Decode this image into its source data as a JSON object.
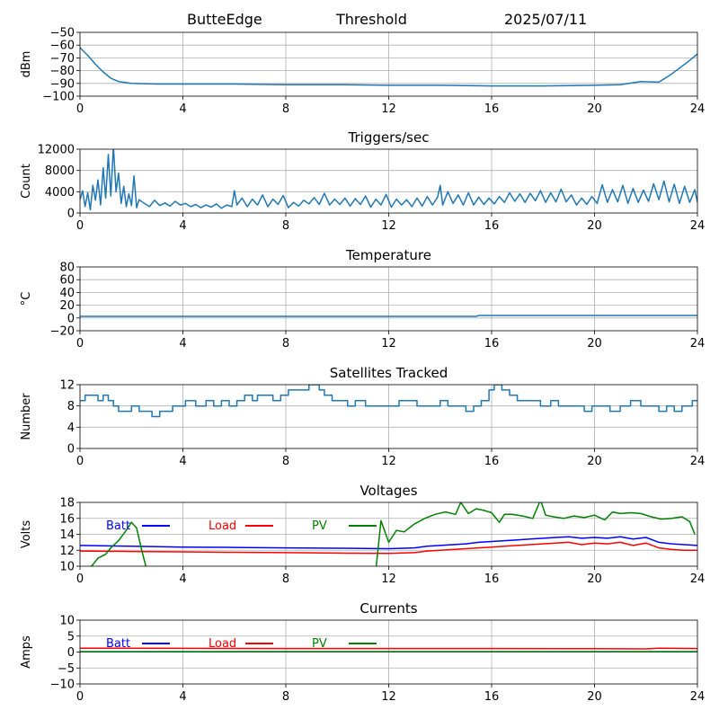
{
  "header": {
    "station": "ButteEdge",
    "mode": "Threshold",
    "date": "2025/07/11"
  },
  "chart_data": [
    {
      "type": "line",
      "title": "",
      "ylabel": "dBm",
      "xlim": [
        0,
        24
      ],
      "ylim": [
        -100,
        -50
      ],
      "xticks": [
        0,
        4,
        8,
        12,
        16,
        20,
        24
      ],
      "yticks": [
        -100,
        -90,
        -80,
        -70,
        -60,
        -50
      ],
      "grid": true,
      "series": [
        {
          "color": "#1f77b4",
          "x": [
            0,
            0.3,
            0.6,
            0.9,
            1.2,
            1.5,
            2,
            3,
            4,
            6,
            8,
            10,
            12,
            14,
            16,
            18,
            20,
            21,
            21.8,
            22.5,
            22.9,
            23.3,
            23.7,
            24
          ],
          "y": [
            -62,
            -68,
            -75,
            -81,
            -86,
            -88.5,
            -90,
            -90.5,
            -90.5,
            -90.5,
            -91,
            -91,
            -91.5,
            -91.5,
            -92,
            -92,
            -91.5,
            -91,
            -88.5,
            -89,
            -84,
            -78,
            -72,
            -67
          ]
        }
      ]
    },
    {
      "type": "line",
      "title": "Triggers/sec",
      "ylabel": "Count",
      "xlim": [
        0,
        24
      ],
      "ylim": [
        0,
        12000
      ],
      "xticks": [
        0,
        4,
        8,
        12,
        16,
        20,
        24
      ],
      "yticks": [
        0,
        4000,
        8000,
        12000
      ],
      "grid": true,
      "series": [
        {
          "color": "#1f77b4",
          "x": [
            0,
            0.1,
            0.2,
            0.3,
            0.4,
            0.5,
            0.6,
            0.7,
            0.8,
            0.9,
            1.0,
            1.1,
            1.2,
            1.3,
            1.4,
            1.5,
            1.6,
            1.7,
            1.8,
            1.9,
            2.0,
            2.1,
            2.2,
            2.3,
            2.5,
            2.7,
            2.9,
            3.1,
            3.3,
            3.5,
            3.7,
            3.9,
            4.1,
            4.3,
            4.5,
            4.7,
            4.9,
            5.1,
            5.3,
            5.5,
            5.7,
            5.9,
            6.0,
            6.1,
            6.3,
            6.5,
            6.7,
            6.9,
            7.1,
            7.3,
            7.5,
            7.7,
            7.9,
            8.1,
            8.3,
            8.5,
            8.7,
            8.9,
            9.1,
            9.3,
            9.5,
            9.7,
            9.9,
            10.1,
            10.3,
            10.5,
            10.7,
            10.9,
            11.1,
            11.3,
            11.5,
            11.7,
            11.9,
            12.1,
            12.3,
            12.5,
            12.7,
            12.9,
            13.1,
            13.3,
            13.5,
            13.7,
            13.9,
            14.0,
            14.1,
            14.3,
            14.5,
            14.7,
            14.9,
            15.1,
            15.3,
            15.5,
            15.7,
            15.9,
            16.1,
            16.3,
            16.5,
            16.7,
            16.9,
            17.1,
            17.3,
            17.5,
            17.7,
            17.9,
            18.1,
            18.3,
            18.5,
            18.7,
            18.9,
            19.1,
            19.3,
            19.5,
            19.7,
            19.9,
            20.1,
            20.3,
            20.5,
            20.7,
            20.9,
            21.1,
            21.3,
            21.5,
            21.7,
            21.9,
            22.1,
            22.3,
            22.5,
            22.7,
            22.9,
            23.1,
            23.3,
            23.5,
            23.7,
            23.9,
            24
          ],
          "y": [
            2500,
            4200,
            1200,
            3800,
            600,
            5200,
            2400,
            6200,
            1500,
            8500,
            2800,
            11000,
            3200,
            12500,
            4000,
            7500,
            1800,
            5000,
            1200,
            3600,
            1400,
            7000,
            1000,
            2500,
            1800,
            1200,
            2400,
            1400,
            1900,
            1300,
            2200,
            1500,
            1800,
            1200,
            1600,
            1000,
            1500,
            1100,
            1700,
            900,
            1500,
            1200,
            4200,
            1500,
            2800,
            1200,
            2600,
            1500,
            3400,
            1200,
            2600,
            1600,
            3300,
            1000,
            2000,
            1300,
            2400,
            1700,
            2900,
            1600,
            3700,
            1500,
            2600,
            1600,
            2800,
            1300,
            2700,
            1600,
            3200,
            1100,
            2600,
            1500,
            3500,
            1100,
            2600,
            1500,
            2500,
            1200,
            2800,
            1300,
            3100,
            1500,
            3000,
            5200,
            1500,
            4000,
            1800,
            3400,
            1500,
            3800,
            1500,
            3000,
            1600,
            2800,
            1700,
            3100,
            2000,
            3800,
            2200,
            3600,
            2000,
            3700,
            2300,
            4200,
            2000,
            3800,
            2100,
            4500,
            2100,
            3400,
            1500,
            2800,
            1600,
            3100,
            1800,
            5300,
            2000,
            4400,
            2100,
            5200,
            1800,
            4600,
            2000,
            4300,
            2200,
            5500,
            2500,
            6000,
            2100,
            5400,
            1800,
            5000,
            2000,
            4400,
            2000
          ]
        }
      ]
    },
    {
      "type": "line",
      "title": "Temperature",
      "ylabel": "°C",
      "xlim": [
        0,
        24
      ],
      "ylim": [
        -20,
        80
      ],
      "xticks": [
        0,
        4,
        8,
        12,
        16,
        20,
        24
      ],
      "yticks": [
        -20,
        0,
        20,
        40,
        60,
        80
      ],
      "grid": true,
      "series": [
        {
          "color": "#1f77b4",
          "x": [
            0,
            15.4,
            15.5,
            24
          ],
          "y": [
            2.5,
            2.5,
            4,
            4
          ]
        }
      ]
    },
    {
      "type": "line",
      "title": "Satellites Tracked",
      "ylabel": "Number",
      "xlim": [
        0,
        24
      ],
      "ylim": [
        0,
        12
      ],
      "xticks": [
        0,
        4,
        8,
        12,
        16,
        20,
        24
      ],
      "yticks": [
        0,
        4,
        8,
        12
      ],
      "grid": true,
      "series": [
        {
          "color": "#1f77b4",
          "step": true,
          "x": [
            0,
            0.2,
            0.7,
            0.9,
            1.1,
            1.3,
            1.5,
            2.0,
            2.3,
            2.6,
            2.8,
            3.1,
            3.3,
            3.6,
            3.9,
            4.1,
            4.5,
            4.9,
            5.2,
            5.5,
            5.8,
            6.1,
            6.4,
            6.7,
            6.9,
            7.2,
            7.5,
            7.8,
            8.1,
            8.6,
            8.9,
            9.3,
            9.5,
            9.8,
            10.1,
            10.4,
            10.7,
            11.1,
            11.5,
            12.1,
            12.4,
            12.8,
            13.1,
            13.5,
            14.0,
            14.3,
            14.7,
            15.0,
            15.3,
            15.6,
            15.9,
            16.1,
            16.4,
            16.7,
            17.0,
            17.4,
            17.9,
            18.3,
            18.6,
            18.9,
            19.3,
            19.6,
            19.9,
            20.3,
            20.6,
            21.0,
            21.4,
            21.8,
            22.1,
            22.5,
            22.8,
            23.1,
            23.4,
            23.8,
            24
          ],
          "y": [
            9,
            10,
            9,
            10,
            9,
            8,
            7,
            8,
            7,
            7,
            6,
            7,
            7,
            8,
            8,
            9,
            8,
            9,
            8,
            9,
            8,
            9,
            10,
            9,
            10,
            10,
            9,
            10,
            11,
            11,
            12,
            11,
            10,
            9,
            9,
            8,
            9,
            8,
            8,
            8,
            9,
            9,
            8,
            8,
            9,
            8,
            8,
            7,
            8,
            9,
            11,
            12,
            11,
            10,
            9,
            9,
            8,
            9,
            8,
            8,
            8,
            7,
            8,
            8,
            7,
            8,
            9,
            8,
            8,
            7,
            8,
            7,
            8,
            9,
            9
          ]
        }
      ]
    },
    {
      "type": "line",
      "title": "Voltages",
      "ylabel": "Volts",
      "xlim": [
        0,
        24
      ],
      "ylim": [
        10,
        18
      ],
      "xticks": [
        0,
        4,
        8,
        12,
        16,
        20,
        24
      ],
      "yticks": [
        10,
        12,
        14,
        16,
        18
      ],
      "grid": true,
      "legend": "top-left",
      "series": [
        {
          "name": "Batt",
          "color": "#0000ff",
          "x": [
            0,
            2,
            4,
            6,
            8,
            10,
            12,
            13,
            13.5,
            14,
            14.5,
            15,
            15.5,
            16,
            16.5,
            17,
            17.5,
            18,
            18.5,
            19,
            19.5,
            20,
            20.5,
            21,
            21.5,
            22,
            22.5,
            23,
            23.5,
            24
          ],
          "y": [
            12.6,
            12.5,
            12.4,
            12.35,
            12.3,
            12.25,
            12.2,
            12.3,
            12.5,
            12.6,
            12.7,
            12.8,
            13.0,
            13.1,
            13.2,
            13.3,
            13.4,
            13.5,
            13.6,
            13.7,
            13.5,
            13.6,
            13.5,
            13.7,
            13.4,
            13.6,
            13.0,
            12.8,
            12.7,
            12.6
          ]
        },
        {
          "name": "Load",
          "color": "#ff0000",
          "x": [
            0,
            2,
            4,
            6,
            8,
            10,
            12,
            13,
            13.5,
            14,
            14.5,
            15,
            15.5,
            16,
            16.5,
            17,
            17.5,
            18,
            18.5,
            19,
            19.5,
            20,
            20.5,
            21,
            21.5,
            22,
            22.5,
            23,
            23.5,
            24
          ],
          "y": [
            11.9,
            11.85,
            11.8,
            11.75,
            11.7,
            11.65,
            11.6,
            11.7,
            11.9,
            12.0,
            12.1,
            12.2,
            12.3,
            12.4,
            12.5,
            12.6,
            12.7,
            12.8,
            12.9,
            13.0,
            12.7,
            12.9,
            12.8,
            13.0,
            12.6,
            12.9,
            12.3,
            12.1,
            12.0,
            12.0
          ]
        },
        {
          "name": "PV",
          "color": "#008000",
          "x": [
            0.3,
            0.5,
            0.7,
            1.0,
            1.2,
            1.5,
            1.8,
            2.0,
            2.2,
            2.4,
            2.6,
            11.5,
            11.7,
            12.0,
            12.3,
            12.6,
            13.0,
            13.4,
            13.8,
            14.2,
            14.6,
            14.8,
            15.1,
            15.4,
            15.7,
            16.0,
            16.3,
            16.5,
            16.8,
            17.2,
            17.6,
            17.9,
            18.1,
            18.4,
            18.8,
            19.2,
            19.6,
            20.0,
            20.4,
            20.7,
            21.0,
            21.4,
            21.8,
            22.2,
            22.6,
            23.0,
            23.4,
            23.7,
            23.9
          ],
          "y": [
            9.5,
            10.2,
            11.0,
            11.5,
            12.3,
            13.2,
            14.5,
            15.5,
            14.8,
            12.0,
            9.5,
            9.5,
            15.7,
            13.0,
            14.5,
            14.3,
            15.3,
            16.0,
            16.5,
            16.8,
            16.5,
            18.0,
            16.6,
            17.2,
            17.0,
            16.7,
            15.5,
            16.5,
            16.5,
            16.3,
            16.0,
            18.3,
            16.4,
            16.2,
            16.0,
            16.3,
            16.1,
            16.4,
            15.8,
            16.8,
            16.6,
            16.7,
            16.6,
            16.2,
            15.9,
            16.0,
            16.2,
            15.6,
            14.0
          ]
        }
      ]
    },
    {
      "type": "line",
      "title": "Currents",
      "ylabel": "Amps",
      "xlim": [
        0,
        24
      ],
      "ylim": [
        -10,
        10
      ],
      "xticks": [
        0,
        4,
        8,
        12,
        16,
        20,
        24
      ],
      "yticks": [
        -10,
        -5,
        0,
        5,
        10
      ],
      "grid": true,
      "legend": "top-left",
      "series": [
        {
          "name": "Batt",
          "color": "#0000ff",
          "x": [
            0,
            24
          ],
          "y": [
            0.1,
            0.1
          ]
        },
        {
          "name": "Load",
          "color": "#ff0000",
          "x": [
            0,
            4,
            8,
            12,
            16,
            20,
            22,
            22.5,
            24
          ],
          "y": [
            1.2,
            1.15,
            1.1,
            1.1,
            1.1,
            1.05,
            1.0,
            1.2,
            1.1
          ]
        },
        {
          "name": "PV",
          "color": "#008000",
          "x": [
            0,
            24
          ],
          "y": [
            0.1,
            0.1
          ]
        }
      ]
    }
  ]
}
